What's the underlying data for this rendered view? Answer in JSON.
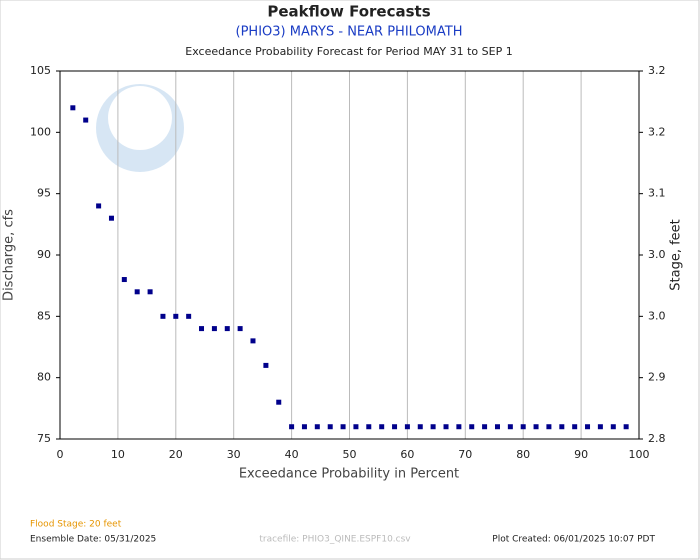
{
  "chart_data": {
    "type": "scatter",
    "title": "Peakflow Forecasts",
    "subtitle": "(PHIO3) MARYS - NEAR PHILOMATH",
    "description": "Exceedance Probability Forecast for Period MAY 31 to SEP 1",
    "x_label": "Exceedance Probability in Percent",
    "y_label": "Discharge, cfs",
    "y2_label": "Stage, feet",
    "x": [
      2.22,
      4.44,
      6.67,
      8.89,
      11.11,
      13.33,
      15.56,
      17.78,
      20.0,
      22.22,
      24.44,
      26.67,
      28.89,
      31.11,
      33.33,
      35.56,
      37.78,
      40.0,
      42.22,
      44.44,
      46.67,
      48.89,
      51.11,
      53.33,
      55.56,
      57.78,
      60.0,
      62.22,
      64.44,
      66.67,
      68.89,
      71.11,
      73.33,
      75.56,
      77.78,
      80.0,
      82.22,
      84.44,
      86.67,
      88.89,
      91.11,
      93.33,
      95.56,
      97.78
    ],
    "values": [
      102,
      101,
      94,
      93,
      88,
      87,
      87,
      85,
      85,
      85,
      84,
      84,
      84,
      84,
      83,
      81,
      78,
      76,
      76,
      76,
      76,
      76,
      76,
      76,
      76,
      76,
      76,
      76,
      76,
      76,
      76,
      76,
      76,
      76,
      76,
      76,
      76,
      76,
      76,
      76,
      76,
      76,
      76,
      76
    ],
    "color": "#00008b",
    "xlim": [
      0,
      100
    ],
    "xticks": [
      0,
      10,
      20,
      30,
      40,
      50,
      60,
      70,
      80,
      90,
      100
    ],
    "ylim": [
      75,
      105
    ],
    "yticks": [
      75,
      80,
      85,
      90,
      95,
      100,
      105
    ],
    "y2lim": [
      2.82,
      3.24
    ],
    "y2ticks": [
      {
        "value": 2.82,
        "label": "2.8"
      },
      {
        "value": 2.89,
        "label": "2.9"
      },
      {
        "value": 2.96,
        "label": "3.0"
      },
      {
        "value": 3.03,
        "label": "3.0"
      },
      {
        "value": 3.1,
        "label": "3.1"
      },
      {
        "value": 3.17,
        "label": "3.2"
      },
      {
        "value": 3.24,
        "label": "3.2"
      }
    ],
    "grid": true,
    "footer": {
      "flood_stage": "Flood Stage: 20 feet",
      "ensemble_date": "Ensemble Date: 05/31/2025",
      "tracefile": "tracefile: PHIO3_QINE.ESPF10.csv",
      "plot_created": "Plot Created: 06/01/2025 10:07 PDT"
    }
  }
}
